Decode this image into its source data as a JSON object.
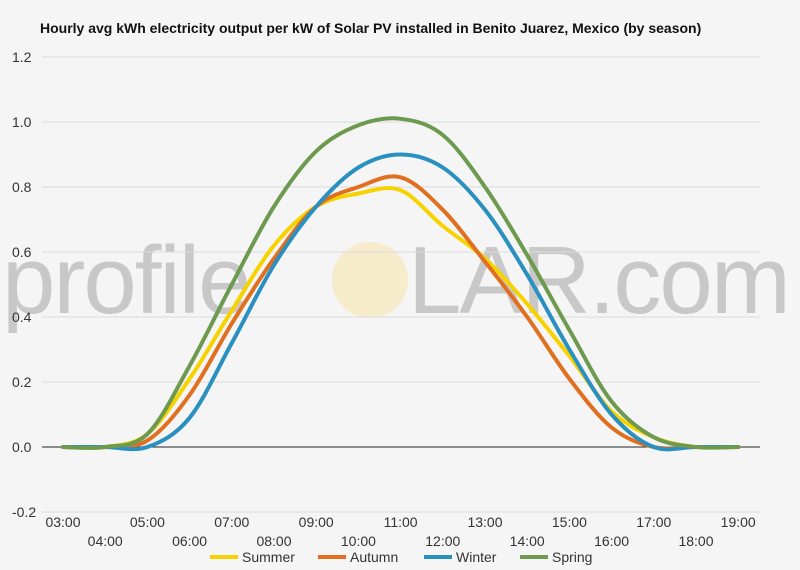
{
  "watermark": {
    "left": "profile",
    "right": "LAR.com"
  },
  "chart_data": {
    "type": "line",
    "title": "Hourly avg kWh electricity output per kW of Solar PV installed in Benito Juarez, Mexico (by season)",
    "xlabel": "",
    "ylabel": "",
    "ylim": [
      -0.2,
      1.2
    ],
    "yticks": [
      "-0.2",
      "0.0",
      "0.2",
      "0.4",
      "0.6",
      "0.8",
      "1.0",
      "1.2"
    ],
    "grid": true,
    "legend_position": "bottom",
    "x": [
      "03:00",
      "04:00",
      "05:00",
      "06:00",
      "07:00",
      "08:00",
      "09:00",
      "10:00",
      "11:00",
      "12:00",
      "13:00",
      "14:00",
      "15:00",
      "16:00",
      "17:00",
      "18:00",
      "19:00"
    ],
    "series": [
      {
        "name": "Summer",
        "color": "#f6d300",
        "values": [
          0.0,
          0.0,
          0.04,
          0.21,
          0.42,
          0.62,
          0.74,
          0.78,
          0.79,
          0.68,
          0.58,
          0.44,
          0.28,
          0.11,
          0.03,
          0.0,
          0.0
        ]
      },
      {
        "name": "Autumn",
        "color": "#e0701f",
        "values": [
          0.0,
          0.0,
          0.02,
          0.16,
          0.38,
          0.58,
          0.74,
          0.8,
          0.83,
          0.73,
          0.57,
          0.4,
          0.21,
          0.06,
          0.0,
          0.0,
          0.0
        ]
      },
      {
        "name": "Winter",
        "color": "#2a90c0",
        "values": [
          0.0,
          0.0,
          0.0,
          0.09,
          0.32,
          0.56,
          0.74,
          0.86,
          0.9,
          0.86,
          0.73,
          0.53,
          0.3,
          0.1,
          0.0,
          0.0,
          0.0
        ]
      },
      {
        "name": "Spring",
        "color": "#6d9a4e",
        "values": [
          0.0,
          0.0,
          0.04,
          0.25,
          0.5,
          0.74,
          0.91,
          0.99,
          1.01,
          0.96,
          0.8,
          0.59,
          0.36,
          0.14,
          0.03,
          0.0,
          0.0
        ]
      }
    ]
  }
}
